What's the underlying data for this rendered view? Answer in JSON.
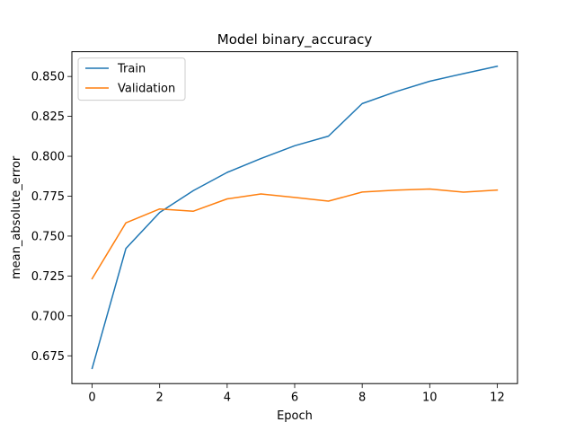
{
  "chart_data": {
    "type": "line",
    "title": "Model binary_accuracy",
    "xlabel": "Epoch",
    "ylabel": "mean_absolute_error",
    "x": [
      0,
      1,
      2,
      3,
      4,
      5,
      6,
      7,
      8,
      9,
      10,
      11,
      12
    ],
    "xlim": [
      -0.6,
      12.6
    ],
    "ylim": [
      0.6576,
      0.8655
    ],
    "x_ticks": [
      0,
      2,
      4,
      6,
      8,
      10,
      12
    ],
    "x_tick_labels": [
      "0",
      "2",
      "4",
      "6",
      "8",
      "10",
      "12"
    ],
    "y_ticks": [
      0.675,
      0.7,
      0.725,
      0.75,
      0.775,
      0.8,
      0.825,
      0.85
    ],
    "y_tick_labels": [
      "0.675",
      "0.700",
      "0.725",
      "0.750",
      "0.775",
      "0.800",
      "0.825",
      "0.850"
    ],
    "grid": false,
    "legend_position": "top-left",
    "series": [
      {
        "name": "Train",
        "color": "#1f77b4",
        "values": [
          0.6671,
          0.7422,
          0.7648,
          0.7785,
          0.7899,
          0.7986,
          0.8066,
          0.8126,
          0.833,
          0.8405,
          0.847,
          0.8518,
          0.8564
        ]
      },
      {
        "name": "Validation",
        "color": "#ff7f0e",
        "values": [
          0.7233,
          0.7583,
          0.767,
          0.7656,
          0.7733,
          0.7764,
          0.7742,
          0.7719,
          0.7776,
          0.7788,
          0.7795,
          0.7775,
          0.7788
        ]
      }
    ]
  }
}
